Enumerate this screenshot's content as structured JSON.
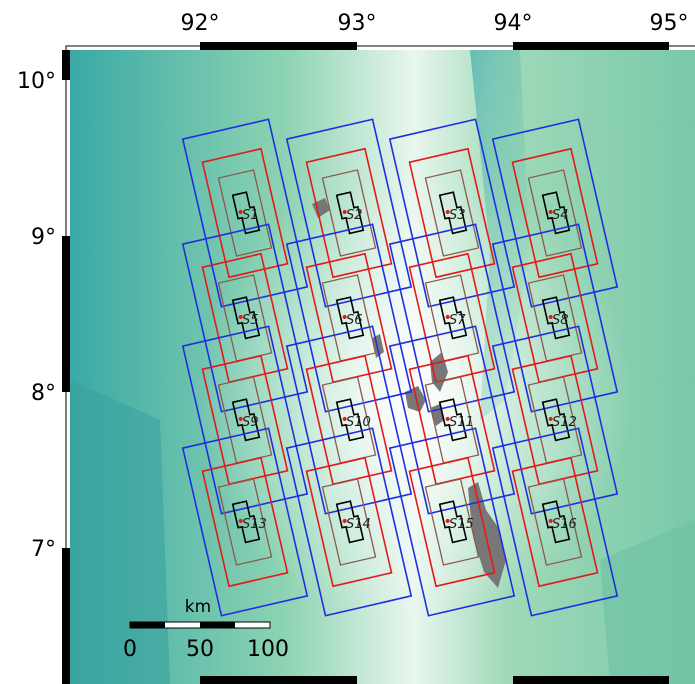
{
  "axes": {
    "lon_labels": [
      "92°",
      "93°",
      "94°",
      "95°"
    ],
    "lat_labels": [
      "10°",
      "9°",
      "8°",
      "7°"
    ]
  },
  "stations": [
    {
      "label": "S1"
    },
    {
      "label": "S2"
    },
    {
      "label": "S3"
    },
    {
      "label": "S4"
    },
    {
      "label": "S5"
    },
    {
      "label": "S6"
    },
    {
      "label": "S7"
    },
    {
      "label": "S8"
    },
    {
      "label": "S9"
    },
    {
      "label": "S10"
    },
    {
      "label": "S11"
    },
    {
      "label": "S12"
    },
    {
      "label": "S13"
    },
    {
      "label": "S14"
    },
    {
      "label": "S15"
    },
    {
      "label": "S16"
    }
  ],
  "scale_bar": {
    "unit": "km",
    "labels": [
      "0",
      "50",
      "100"
    ]
  }
}
